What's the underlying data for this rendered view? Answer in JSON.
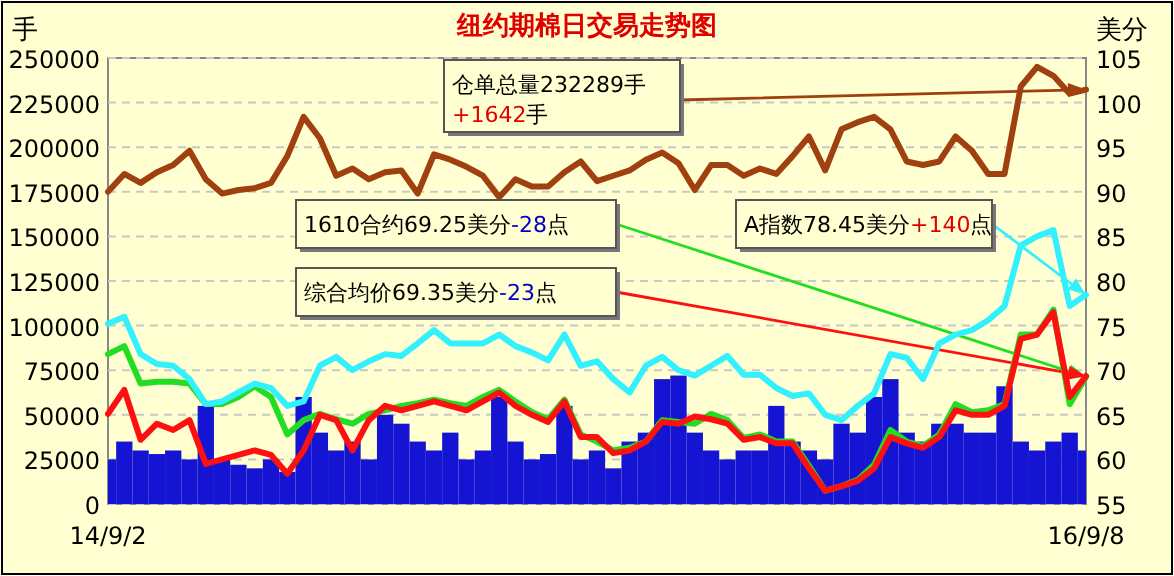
{
  "chart_data": {
    "type": "line",
    "title": "纽约期棉日交易走势图",
    "ylabel": "手",
    "y2label": "美分",
    "categories": [
      "14/9/2",
      null,
      null,
      null,
      null,
      null,
      null,
      null,
      null,
      null,
      null,
      null,
      null,
      null,
      null,
      null,
      null,
      null,
      null,
      null,
      null,
      null,
      null,
      null,
      null,
      null,
      null,
      null,
      null,
      null,
      null,
      null,
      null,
      null,
      null,
      null,
      null,
      null,
      null,
      null,
      null,
      null,
      null,
      null,
      null,
      null,
      null,
      null,
      null,
      null,
      null,
      null,
      null,
      null,
      null,
      null,
      null,
      null,
      null,
      null,
      "16/9/8"
    ],
    "series": [
      {
        "type": "bar",
        "color": "#1414d2",
        "values": [
          25000,
          35000,
          30000,
          28000,
          30000,
          25000,
          55000,
          25000,
          22000,
          20000,
          25000,
          18000,
          60000,
          40000,
          30000,
          35000,
          25000,
          50000,
          45000,
          35000,
          30000,
          40000,
          25000,
          30000,
          60000,
          35000,
          25000,
          28000,
          55000,
          25000,
          30000,
          20000,
          35000,
          40000,
          70000,
          72000,
          40000,
          30000,
          25000,
          30000,
          30000,
          55000,
          35000,
          30000,
          25000,
          45000,
          40000,
          60000,
          70000,
          40000,
          35000,
          45000,
          45000,
          40000,
          40000,
          66000,
          35000,
          30000,
          35000,
          40000,
          30000
        ]
      },
      {
        "color": "#a0400f",
        "values": [
          175000,
          185000,
          180000,
          186000,
          190000,
          198000,
          182000,
          174000,
          176000,
          177000,
          180000,
          195000,
          217000,
          205000,
          184000,
          188000,
          182000,
          186000,
          187000,
          174000,
          196000,
          193000,
          189000,
          184000,
          172000,
          182000,
          178000,
          178000,
          186000,
          192000,
          181000,
          184000,
          187000,
          193000,
          197000,
          191000,
          176000,
          190000,
          190000,
          184000,
          188000,
          185000,
          195000,
          206000,
          187000,
          210000,
          214000,
          217000,
          210000,
          192000,
          190000,
          192000,
          206000,
          198000,
          185000,
          185000,
          234000,
          245000,
          240000,
          230000,
          232289
        ]
      },
      {
        "axis": "y2",
        "color": "#22dd22",
        "values": [
          71.8,
          72.7,
          68.5,
          68.7,
          68.7,
          68.5,
          66.2,
          66.2,
          67,
          68.2,
          67,
          62.8,
          64.4,
          65.1,
          64.5,
          64,
          65.1,
          65.5,
          66,
          66.3,
          66.7,
          66.3,
          66,
          67,
          67.8,
          66.5,
          65.3,
          64.5,
          66.7,
          62.8,
          62,
          61,
          61.3,
          62,
          64.4,
          64.2,
          64,
          65.1,
          64.4,
          62.4,
          62.8,
          62,
          62,
          59.3,
          56.5,
          57,
          57.7,
          59.4,
          63.3,
          62,
          61.5,
          62.8,
          66.2,
          65.3,
          65.5,
          66.2,
          74,
          74,
          76.8,
          66.2,
          69.25
        ]
      },
      {
        "axis": "y2",
        "color": "#ff1010",
        "values": [
          65.1,
          67.8,
          62.2,
          64,
          63.3,
          64.4,
          59.5,
          60,
          60.5,
          61,
          60.5,
          58.4,
          61,
          65,
          64.4,
          61,
          64.4,
          66,
          65.5,
          66,
          66.5,
          66,
          65.5,
          66.5,
          67.5,
          66,
          65,
          64.2,
          66.5,
          62.5,
          62.5,
          60.7,
          61,
          62,
          64.2,
          64,
          64.8,
          64.5,
          64,
          62.2,
          62.5,
          61.8,
          61.8,
          59,
          56.5,
          57,
          57.6,
          59,
          62.5,
          61.8,
          61.3,
          62.5,
          65.5,
          65,
          65,
          66,
          73.5,
          74,
          76.5,
          67,
          69.35
        ]
      },
      {
        "axis": "y2",
        "color": "#33f0ff",
        "values": [
          75.2,
          76,
          71.8,
          70.7,
          70.5,
          69,
          66.2,
          66.5,
          67.5,
          68.5,
          68,
          66,
          66.5,
          70.5,
          71.5,
          70,
          71,
          71.8,
          71.6,
          73,
          74.5,
          73,
          73,
          73,
          74,
          72.7,
          72,
          71.1,
          74,
          70.5,
          71,
          69,
          67.5,
          70.5,
          71.5,
          70,
          69.4,
          70.5,
          71.6,
          69.5,
          69.5,
          68,
          67.1,
          67.4,
          65,
          64.4,
          66,
          67.4,
          71.8,
          71.4,
          69,
          73,
          74,
          74.5,
          75.6,
          77.2,
          84,
          85,
          85.7,
          77.2,
          78.45
        ]
      }
    ],
    "ylim": [
      0,
      250000
    ],
    "yticks": [
      0,
      25000,
      50000,
      75000,
      100000,
      125000,
      150000,
      175000,
      200000,
      225000,
      250000
    ],
    "y2lim": [
      55,
      105
    ],
    "y2ticks": [
      55,
      60,
      65,
      70,
      75,
      80,
      85,
      90,
      95,
      100,
      105
    ],
    "grid": "y",
    "annotations": [
      "仓单总量232289手\n+1642手",
      "1610合约69.25美分-28点",
      "综合均价69.35美分-23点",
      "A指数78.45美分+140点"
    ]
  }
}
